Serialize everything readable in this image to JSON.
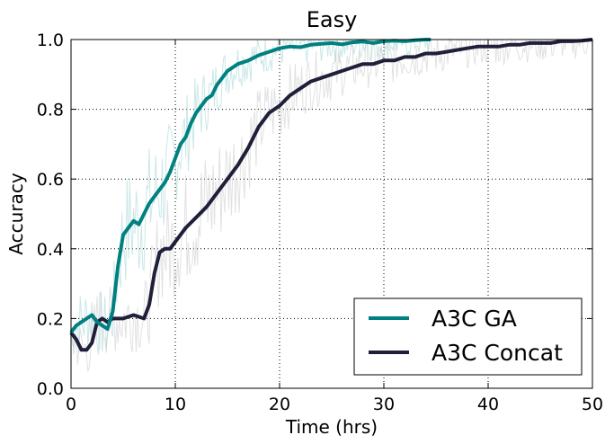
{
  "chart_data": {
    "type": "line",
    "title": "Easy",
    "xlabel": "Time (hrs)",
    "ylabel": "Accuracy",
    "xlim": [
      0,
      50
    ],
    "ylim": [
      0,
      1
    ],
    "xticks": [
      0,
      10,
      20,
      30,
      40,
      50
    ],
    "xtick_labels": [
      "0",
      "10",
      "20",
      "30",
      "40",
      "50"
    ],
    "yticks": [
      0,
      0.2,
      0.4,
      0.6,
      0.8,
      1.0
    ],
    "ytick_labels": [
      "0.0",
      "0.2",
      "0.4",
      "0.6",
      "0.8",
      "1.0"
    ],
    "grid": true,
    "legend_position": "lower-right",
    "series": [
      {
        "name": "A3C GA",
        "color": "#008080",
        "x": [
          0,
          0.5,
          1,
          1.5,
          2,
          2.5,
          3,
          3.5,
          4,
          4.5,
          5,
          5.5,
          6,
          6.5,
          7,
          7.5,
          8,
          8.5,
          9,
          9.5,
          10,
          10.5,
          11,
          11.5,
          12,
          12.5,
          13,
          13.5,
          14,
          15,
          16,
          17,
          18,
          19,
          20,
          21,
          22,
          23,
          24,
          25,
          26,
          27,
          28,
          29,
          30,
          31,
          32,
          33,
          34,
          34.5
        ],
        "y": [
          0.16,
          0.18,
          0.19,
          0.2,
          0.21,
          0.19,
          0.18,
          0.17,
          0.22,
          0.35,
          0.44,
          0.46,
          0.48,
          0.47,
          0.5,
          0.53,
          0.55,
          0.57,
          0.59,
          0.62,
          0.66,
          0.7,
          0.72,
          0.76,
          0.79,
          0.81,
          0.83,
          0.84,
          0.87,
          0.91,
          0.93,
          0.94,
          0.955,
          0.965,
          0.975,
          0.98,
          0.978,
          0.985,
          0.988,
          0.99,
          0.986,
          0.992,
          0.994,
          0.99,
          0.995,
          0.997,
          0.995,
          0.998,
          1.0,
          1.0
        ]
      },
      {
        "name": "A3C Concat",
        "color": "#1f1f3a",
        "x": [
          0,
          0.5,
          1,
          1.5,
          2,
          2.5,
          3,
          3.5,
          4,
          5,
          6,
          7,
          7.5,
          8,
          8.5,
          9,
          9.5,
          10,
          11,
          12,
          13,
          14,
          15,
          16,
          17,
          18,
          19,
          20,
          21,
          22,
          23,
          24,
          25,
          26,
          27,
          28,
          29,
          30,
          31,
          32,
          33,
          34,
          35,
          36,
          37,
          38,
          39,
          40,
          41,
          42,
          43,
          44,
          45,
          46,
          47,
          48,
          49,
          50
        ],
        "y": [
          0.16,
          0.14,
          0.11,
          0.11,
          0.13,
          0.19,
          0.2,
          0.19,
          0.2,
          0.2,
          0.21,
          0.2,
          0.24,
          0.33,
          0.39,
          0.4,
          0.4,
          0.42,
          0.46,
          0.49,
          0.52,
          0.56,
          0.6,
          0.64,
          0.69,
          0.75,
          0.79,
          0.81,
          0.84,
          0.86,
          0.88,
          0.89,
          0.9,
          0.91,
          0.92,
          0.93,
          0.93,
          0.94,
          0.94,
          0.95,
          0.95,
          0.96,
          0.96,
          0.965,
          0.97,
          0.975,
          0.98,
          0.98,
          0.98,
          0.985,
          0.985,
          0.99,
          0.99,
          0.99,
          0.995,
          0.995,
          0.997,
          1.0
        ]
      }
    ]
  }
}
